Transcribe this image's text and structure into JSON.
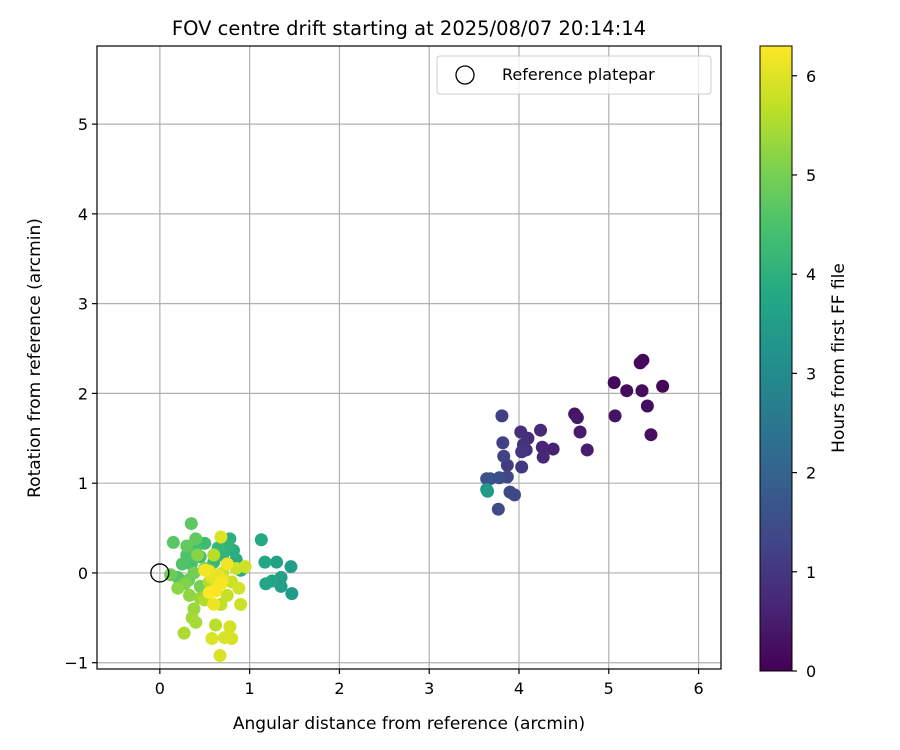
{
  "chart_data": {
    "type": "scatter",
    "title": "FOV centre drift starting at 2025/08/07 20:14:14",
    "xlabel": "Angular distance from reference (arcmin)",
    "ylabel": "Rotation from reference (arcmin)",
    "xlim": [
      -0.7,
      6.25
    ],
    "ylim": [
      -1.07,
      5.87
    ],
    "xticks": [
      0,
      1,
      2,
      3,
      4,
      5,
      6
    ],
    "yticks": [
      -1,
      0,
      1,
      2,
      3,
      4,
      5
    ],
    "grid": true,
    "legend": {
      "label": "Reference platepar",
      "position": "top-right"
    },
    "reference_point": {
      "x": 0,
      "y": 0
    },
    "colorbar": {
      "label": "Hours from first FF file",
      "colormap": "viridis",
      "range": [
        0,
        6.3
      ],
      "ticks": [
        0,
        1,
        2,
        3,
        4,
        5,
        6
      ]
    },
    "series": [
      {
        "points": [
          {
            "x": 5.6,
            "y": 2.08,
            "t": 0.05
          },
          {
            "x": 5.38,
            "y": 2.37,
            "t": 0.1
          },
          {
            "x": 5.35,
            "y": 2.34,
            "t": 0.12
          },
          {
            "x": 5.06,
            "y": 2.12,
            "t": 0.15
          },
          {
            "x": 5.2,
            "y": 2.03,
            "t": 0.18
          },
          {
            "x": 5.37,
            "y": 2.03,
            "t": 0.2
          },
          {
            "x": 5.43,
            "y": 1.86,
            "t": 0.22
          },
          {
            "x": 5.47,
            "y": 1.54,
            "t": 0.25
          },
          {
            "x": 5.07,
            "y": 1.75,
            "t": 0.3
          },
          {
            "x": 4.62,
            "y": 1.77,
            "t": 0.35
          },
          {
            "x": 4.65,
            "y": 1.73,
            "t": 0.4
          },
          {
            "x": 4.68,
            "y": 1.57,
            "t": 0.45
          },
          {
            "x": 4.76,
            "y": 1.37,
            "t": 0.5
          },
          {
            "x": 4.38,
            "y": 1.38,
            "t": 0.6
          },
          {
            "x": 4.26,
            "y": 1.4,
            "t": 0.65
          },
          {
            "x": 4.27,
            "y": 1.29,
            "t": 0.7
          },
          {
            "x": 4.24,
            "y": 1.59,
            "t": 0.75
          },
          {
            "x": 4.1,
            "y": 1.5,
            "t": 0.8
          },
          {
            "x": 4.02,
            "y": 1.57,
            "t": 0.85
          },
          {
            "x": 4.05,
            "y": 1.43,
            "t": 0.9
          },
          {
            "x": 4.08,
            "y": 1.37,
            "t": 0.95
          },
          {
            "x": 4.03,
            "y": 1.35,
            "t": 1.0
          },
          {
            "x": 4.03,
            "y": 1.18,
            "t": 1.05
          },
          {
            "x": 3.87,
            "y": 1.2,
            "t": 1.1
          },
          {
            "x": 3.81,
            "y": 1.75,
            "t": 1.15
          },
          {
            "x": 3.82,
            "y": 1.45,
            "t": 1.2
          },
          {
            "x": 3.83,
            "y": 1.3,
            "t": 1.25
          },
          {
            "x": 3.87,
            "y": 1.07,
            "t": 1.3
          },
          {
            "x": 3.9,
            "y": 0.9,
            "t": 1.35
          },
          {
            "x": 3.95,
            "y": 0.87,
            "t": 1.4
          },
          {
            "x": 3.77,
            "y": 0.71,
            "t": 1.45
          },
          {
            "x": 3.78,
            "y": 1.06,
            "t": 1.5
          },
          {
            "x": 3.68,
            "y": 1.05,
            "t": 1.55
          },
          {
            "x": 3.64,
            "y": 1.05,
            "t": 1.6
          },
          {
            "x": 3.64,
            "y": 0.93,
            "t": 3.3
          },
          {
            "x": 3.65,
            "y": 0.91,
            "t": 3.4
          },
          {
            "x": 1.47,
            "y": -0.23,
            "t": 3.45
          },
          {
            "x": 1.46,
            "y": 0.07,
            "t": 3.5
          },
          {
            "x": 1.35,
            "y": -0.15,
            "t": 3.55
          },
          {
            "x": 1.35,
            "y": -0.05,
            "t": 3.6
          },
          {
            "x": 1.3,
            "y": 0.12,
            "t": 3.65
          },
          {
            "x": 1.25,
            "y": -0.09,
            "t": 3.7
          },
          {
            "x": 1.18,
            "y": -0.12,
            "t": 3.72
          },
          {
            "x": 1.17,
            "y": 0.12,
            "t": 3.75
          },
          {
            "x": 1.13,
            "y": 0.37,
            "t": 3.8
          },
          {
            "x": 0.9,
            "y": 0.03,
            "t": 3.85
          },
          {
            "x": 0.85,
            "y": 0.15,
            "t": 3.9
          },
          {
            "x": 0.82,
            "y": 0.25,
            "t": 3.95
          },
          {
            "x": 0.78,
            "y": 0.38,
            "t": 4.0
          },
          {
            "x": 0.75,
            "y": 0.3,
            "t": 4.05
          },
          {
            "x": 0.7,
            "y": 0.2,
            "t": 4.1
          },
          {
            "x": 0.65,
            "y": 0.28,
            "t": 4.15
          },
          {
            "x": 0.6,
            "y": 0.12,
            "t": 4.2
          },
          {
            "x": 0.55,
            "y": 0.05,
            "t": 4.25
          },
          {
            "x": 0.5,
            "y": 0.33,
            "t": 4.3
          },
          {
            "x": 0.45,
            "y": 0.18,
            "t": 4.35
          },
          {
            "x": 0.4,
            "y": 0.25,
            "t": 4.4
          },
          {
            "x": 0.35,
            "y": 0.1,
            "t": 4.45
          },
          {
            "x": 0.3,
            "y": 0.2,
            "t": 4.5
          },
          {
            "x": 0.25,
            "y": 0.1,
            "t": 4.55
          },
          {
            "x": 0.2,
            "y": -0.05,
            "t": 4.6
          },
          {
            "x": 0.15,
            "y": 0.34,
            "t": 4.65
          },
          {
            "x": 0.35,
            "y": 0.55,
            "t": 4.7
          },
          {
            "x": 0.4,
            "y": 0.38,
            "t": 4.75
          },
          {
            "x": 0.3,
            "y": 0.3,
            "t": 4.8
          },
          {
            "x": 0.32,
            "y": -0.08,
            "t": 4.85
          },
          {
            "x": 0.12,
            "y": -0.02,
            "t": 4.9
          },
          {
            "x": 0.38,
            "y": 0.0,
            "t": 4.95
          },
          {
            "x": 0.45,
            "y": -0.15,
            "t": 5.0
          },
          {
            "x": 0.5,
            "y": 0.05,
            "t": 5.05
          },
          {
            "x": 0.28,
            "y": -0.12,
            "t": 5.1
          },
          {
            "x": 0.42,
            "y": 0.2,
            "t": 5.15
          },
          {
            "x": 0.2,
            "y": -0.17,
            "t": 5.2
          },
          {
            "x": 0.33,
            "y": -0.25,
            "t": 5.25
          },
          {
            "x": 0.45,
            "y": -0.28,
            "t": 5.3
          },
          {
            "x": 0.38,
            "y": -0.4,
            "t": 5.35
          },
          {
            "x": 0.36,
            "y": -0.5,
            "t": 5.4
          },
          {
            "x": 0.4,
            "y": -0.55,
            "t": 5.45
          },
          {
            "x": 0.27,
            "y": -0.67,
            "t": 5.5
          },
          {
            "x": 0.5,
            "y": -0.3,
            "t": 5.55
          },
          {
            "x": 0.55,
            "y": -0.1,
            "t": 5.6
          },
          {
            "x": 0.6,
            "y": 0.2,
            "t": 5.62
          },
          {
            "x": 0.62,
            "y": -0.58,
            "t": 5.65
          },
          {
            "x": 0.68,
            "y": -0.35,
            "t": 5.7
          },
          {
            "x": 0.7,
            "y": 0.0,
            "t": 5.72
          },
          {
            "x": 0.75,
            "y": -0.25,
            "t": 5.75
          },
          {
            "x": 0.8,
            "y": -0.1,
            "t": 5.78
          },
          {
            "x": 0.85,
            "y": 0.05,
            "t": 5.8
          },
          {
            "x": 0.9,
            "y": -0.35,
            "t": 5.82
          },
          {
            "x": 0.95,
            "y": 0.07,
            "t": 5.85
          },
          {
            "x": 0.88,
            "y": -0.17,
            "t": 5.88
          },
          {
            "x": 0.78,
            "y": -0.6,
            "t": 5.9
          },
          {
            "x": 0.8,
            "y": -0.73,
            "t": 5.92
          },
          {
            "x": 0.72,
            "y": -0.72,
            "t": 5.94
          },
          {
            "x": 0.58,
            "y": -0.73,
            "t": 5.96
          },
          {
            "x": 0.67,
            "y": -0.92,
            "t": 5.98
          },
          {
            "x": 0.68,
            "y": 0.4,
            "t": 6.0
          },
          {
            "x": 0.58,
            "y": -0.05,
            "t": 6.02
          },
          {
            "x": 0.63,
            "y": -0.15,
            "t": 6.05
          },
          {
            "x": 0.65,
            "y": -0.02,
            "t": 6.08
          },
          {
            "x": 0.55,
            "y": 0.02,
            "t": 6.1
          },
          {
            "x": 0.7,
            "y": -0.08,
            "t": 6.12
          },
          {
            "x": 0.6,
            "y": -0.35,
            "t": 6.15
          },
          {
            "x": 0.75,
            "y": 0.1,
            "t": 6.18
          },
          {
            "x": 0.5,
            "y": 0.03,
            "t": 6.2
          },
          {
            "x": 0.62,
            "y": -0.2,
            "t": 6.22
          },
          {
            "x": 0.68,
            "y": -0.12,
            "t": 6.25
          },
          {
            "x": 0.55,
            "y": -0.22,
            "t": 6.28
          }
        ]
      }
    ]
  }
}
